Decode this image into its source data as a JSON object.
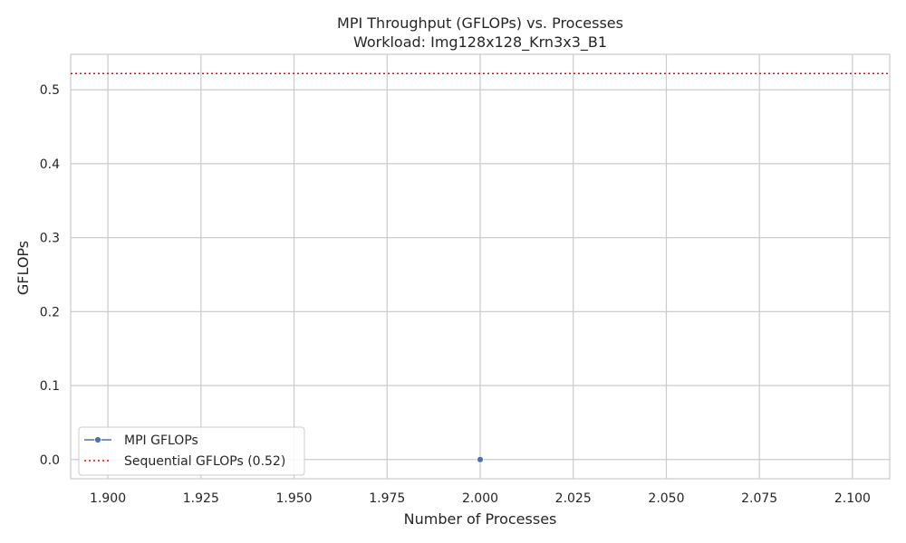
{
  "chart_data": {
    "type": "line",
    "title": "MPI Throughput (GFLOPs) vs. Processes",
    "subtitle": "Workload: Img128x128_Krn3x3_B1",
    "xlabel": "Number of Processes",
    "ylabel": "GFLOPs",
    "xlim": [
      1.89,
      2.11
    ],
    "ylim": [
      -0.026,
      0.548
    ],
    "xticks": [
      1.9,
      1.925,
      1.95,
      1.975,
      2.0,
      2.025,
      2.05,
      2.075,
      2.1
    ],
    "xtick_labels": [
      "1.900",
      "1.925",
      "1.950",
      "1.975",
      "2.000",
      "2.025",
      "2.050",
      "2.075",
      "2.100"
    ],
    "yticks": [
      0.0,
      0.1,
      0.2,
      0.3,
      0.4,
      0.5
    ],
    "ytick_labels": [
      "0.0",
      "0.1",
      "0.2",
      "0.3",
      "0.4",
      "0.5"
    ],
    "grid": true,
    "legend_position": "lower-left",
    "series": [
      {
        "name": "MPI GFLOPs",
        "x": [
          2
        ],
        "y": [
          0.0
        ],
        "color": "#4c72b0",
        "marker": "circle",
        "line_style": "solid"
      }
    ],
    "reference_lines": [
      {
        "name": "Sequential GFLOPs (0.52)",
        "y": 0.522,
        "color": "#ff0000",
        "line_style": "dotted"
      }
    ]
  }
}
